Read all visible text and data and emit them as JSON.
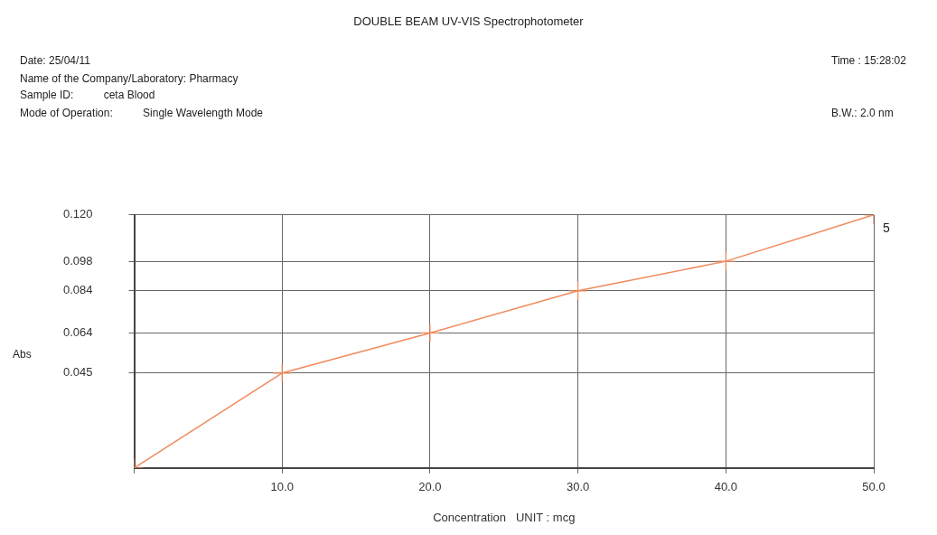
{
  "chart_data": {
    "type": "line",
    "title": "DOUBLE BEAM UV-VIS Spectrophotometer",
    "annotations": [
      "Date: 25/04/11",
      "Name of the Company/Laboratory: Pharmacy",
      "Sample ID:          ceta Blood",
      "Mode of Operation:          Single Wavelength Mode",
      "Time : 15:28:02",
      "B.W.: 2.0 nm",
      {
        "text": "5",
        "x": 50,
        "y": 0.12
      }
    ],
    "xlabel": "Concentration   UNIT : mcg",
    "ylabel": "Abs",
    "x": [
      0,
      10,
      20,
      30,
      40,
      50
    ],
    "series": [
      {
        "color": "#f08a5d",
        "values": [
          0,
          0.045,
          0.064,
          0.084,
          0.098,
          0.12
        ]
      }
    ],
    "xlim": [
      0,
      50
    ],
    "xticks": [
      {
        "value": 0,
        "label": null
      },
      {
        "value": 10,
        "label": "10.0"
      },
      {
        "value": 20,
        "label": "20.0"
      },
      {
        "value": 30,
        "label": "30.0"
      },
      {
        "value": 40,
        "label": "40.0"
      },
      {
        "value": 50,
        "label": "50.0"
      }
    ],
    "ylim": [
      0,
      0.12
    ],
    "yticks": [
      0.045,
      0.064,
      0.084,
      0.098,
      {
        "value": 0.12,
        "label": "0.120"
      }
    ],
    "grid": true,
    "legend": false,
    "marker": "cross",
    "line_style": "solid"
  }
}
